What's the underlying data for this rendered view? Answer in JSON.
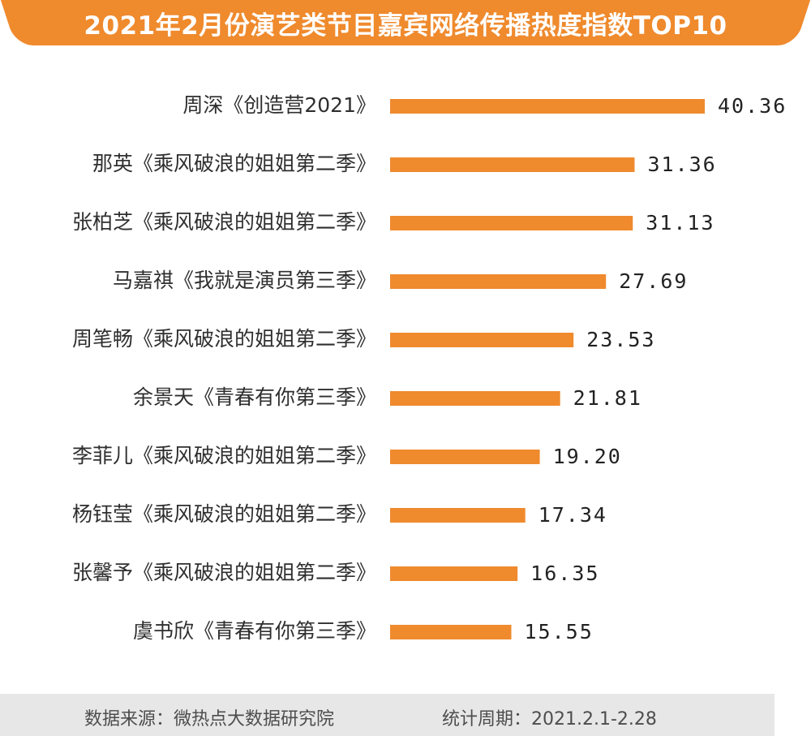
{
  "title": "2021年2月份演艺类节目嘉宾网络传播热度指数TOP10",
  "chart_data": {
    "type": "bar",
    "orientation": "horizontal",
    "bar_color": "#ef8a2d",
    "categories": [
      "周深《创造营2021》",
      "那英《乘风破浪的姐姐第二季》",
      "张柏芝《乘风破浪的姐姐第二季》",
      "马嘉祺《我就是演员第三季》",
      "周笔畅《乘风破浪的姐姐第二季》",
      "余景天《青春有你第三季》",
      "李菲儿《乘风破浪的姐姐第二季》",
      "杨钰莹《乘风破浪的姐姐第二季》",
      "张馨予《乘风破浪的姐姐第二季》",
      "虞书欣《青春有你第三季》"
    ],
    "values": [
      40.36,
      31.36,
      31.13,
      27.69,
      23.53,
      21.81,
      19.2,
      17.34,
      16.35,
      15.55
    ],
    "value_labels": [
      "40.36",
      "31.36",
      "31.13",
      "27.69",
      "23.53",
      "21.81",
      "19.20",
      "17.34",
      "16.35",
      "15.55"
    ]
  },
  "footer": {
    "source": "数据来源：微热点大数据研究院",
    "period": "统计周期：2021.2.1-2.28"
  }
}
